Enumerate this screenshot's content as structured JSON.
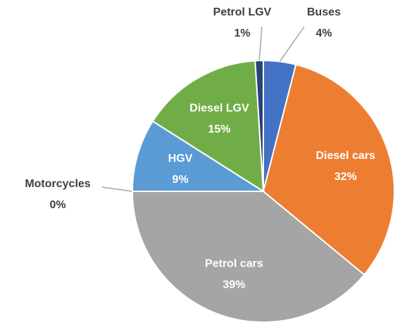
{
  "chart_data": {
    "type": "pie",
    "categories": [
      "Buses",
      "Diesel cars",
      "Petrol cars",
      "Motorcycles",
      "HGV",
      "Diesel LGV",
      "Petrol LGV"
    ],
    "values": [
      4,
      32,
      39,
      0,
      9,
      15,
      1
    ],
    "value_labels": [
      "4%",
      "32%",
      "39%",
      "0%",
      "9%",
      "15%",
      "1%"
    ],
    "colors": [
      "#4472c4",
      "#ed7d31",
      "#a5a5a5",
      "#ffc000",
      "#5b9bd5",
      "#70ad47",
      "#264478"
    ]
  }
}
